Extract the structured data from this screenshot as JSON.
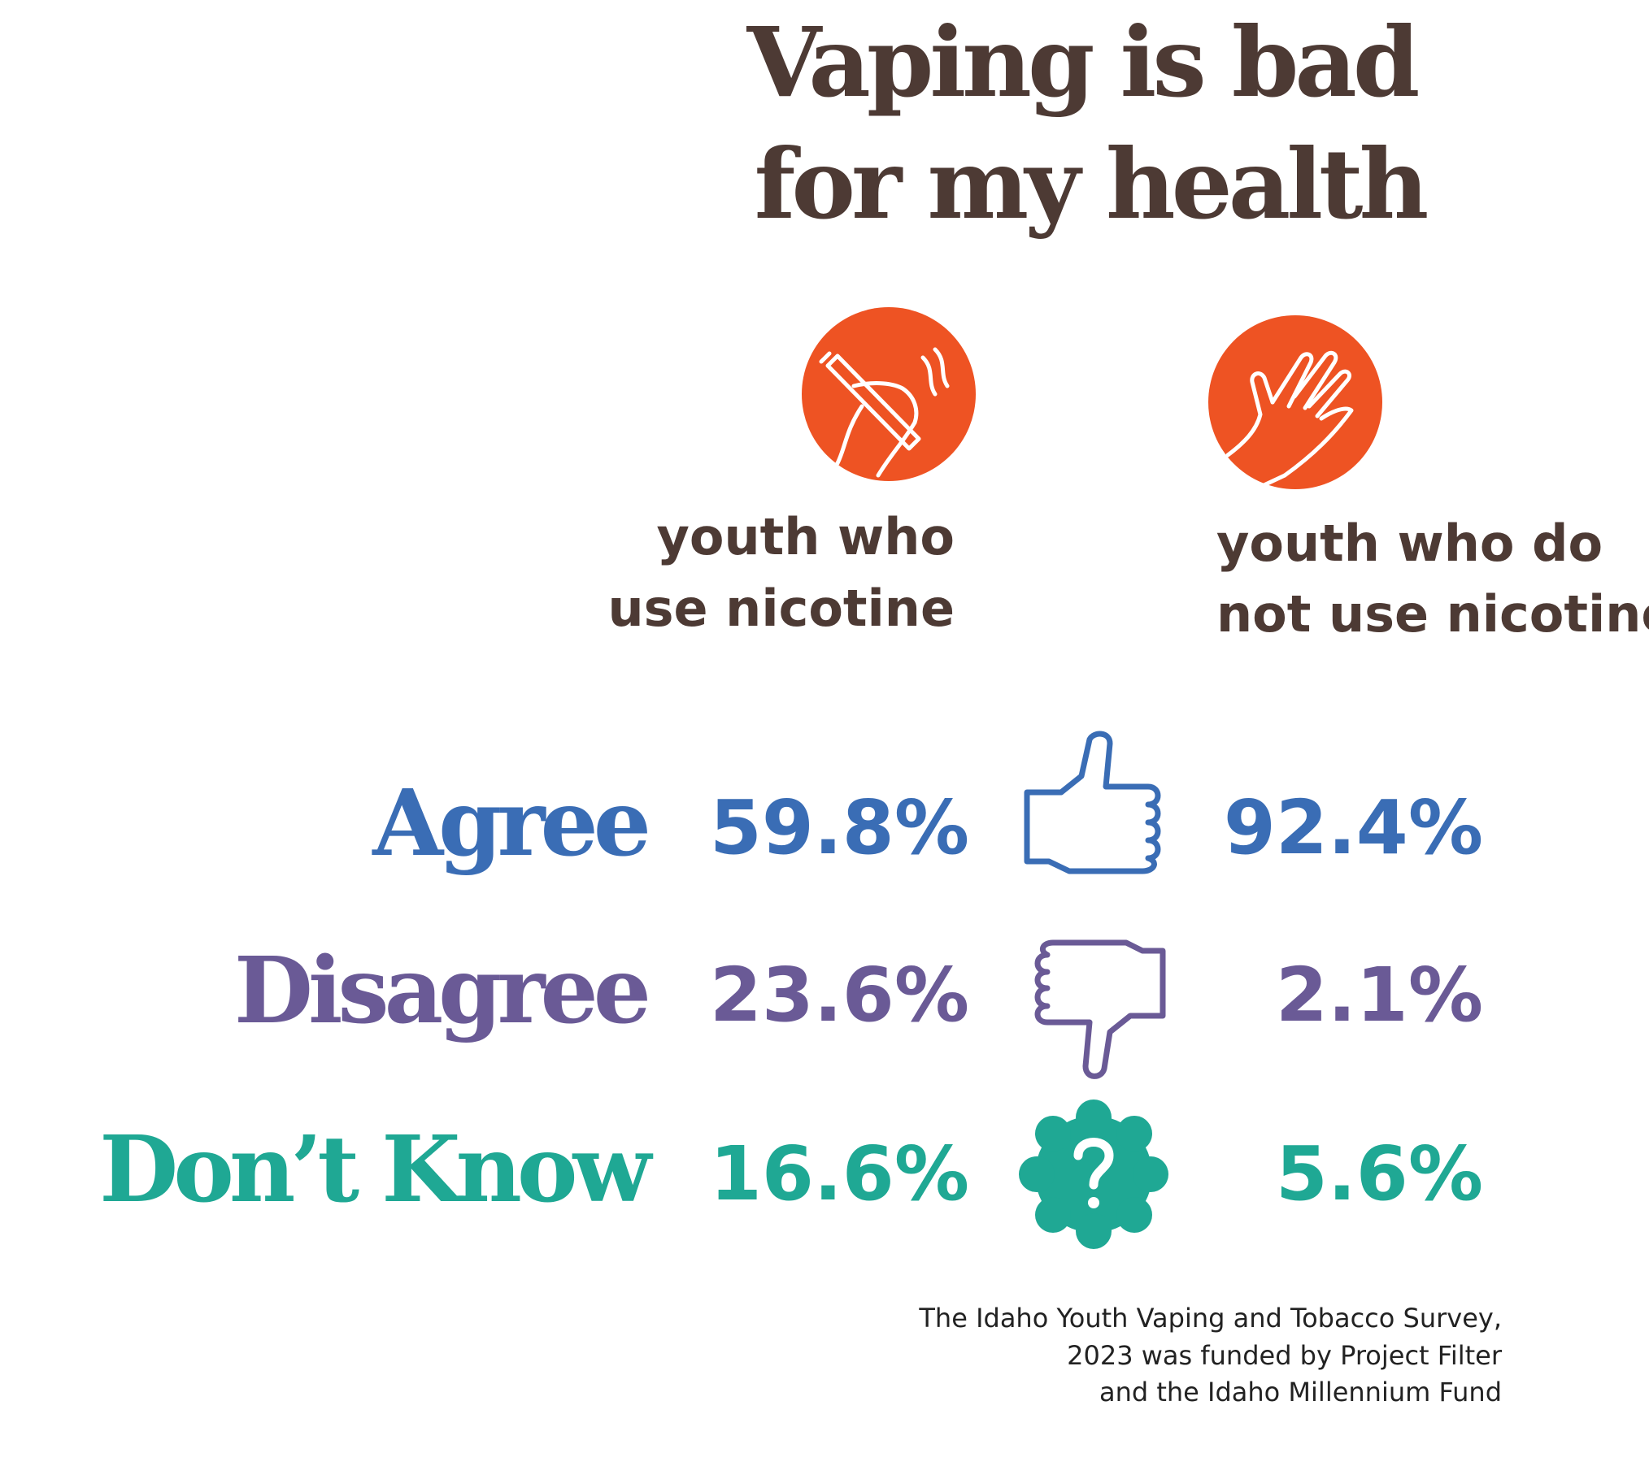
{
  "header": {
    "title_lines": [
      "Vaping is bad",
      "for my health"
    ]
  },
  "groups": [
    {
      "label_lines": [
        "youth who",
        "use nicotine"
      ]
    },
    {
      "label_lines": [
        "youth who do",
        "not use nicotine"
      ]
    }
  ],
  "rows": [
    {
      "label": "Agree",
      "values": [
        "59.8%",
        "92.4%"
      ]
    },
    {
      "label": "Disagree",
      "values": [
        "23.6%",
        "2.1%"
      ]
    },
    {
      "label": "Don’t Know",
      "values": [
        "16.6%",
        "5.6%"
      ]
    }
  ],
  "footer": {
    "lines": [
      "The Idaho Youth Vaping and Tobacco Survey,",
      "2023 was funded by Project Filter",
      "and the Idaho Millennium Fund"
    ]
  }
}
